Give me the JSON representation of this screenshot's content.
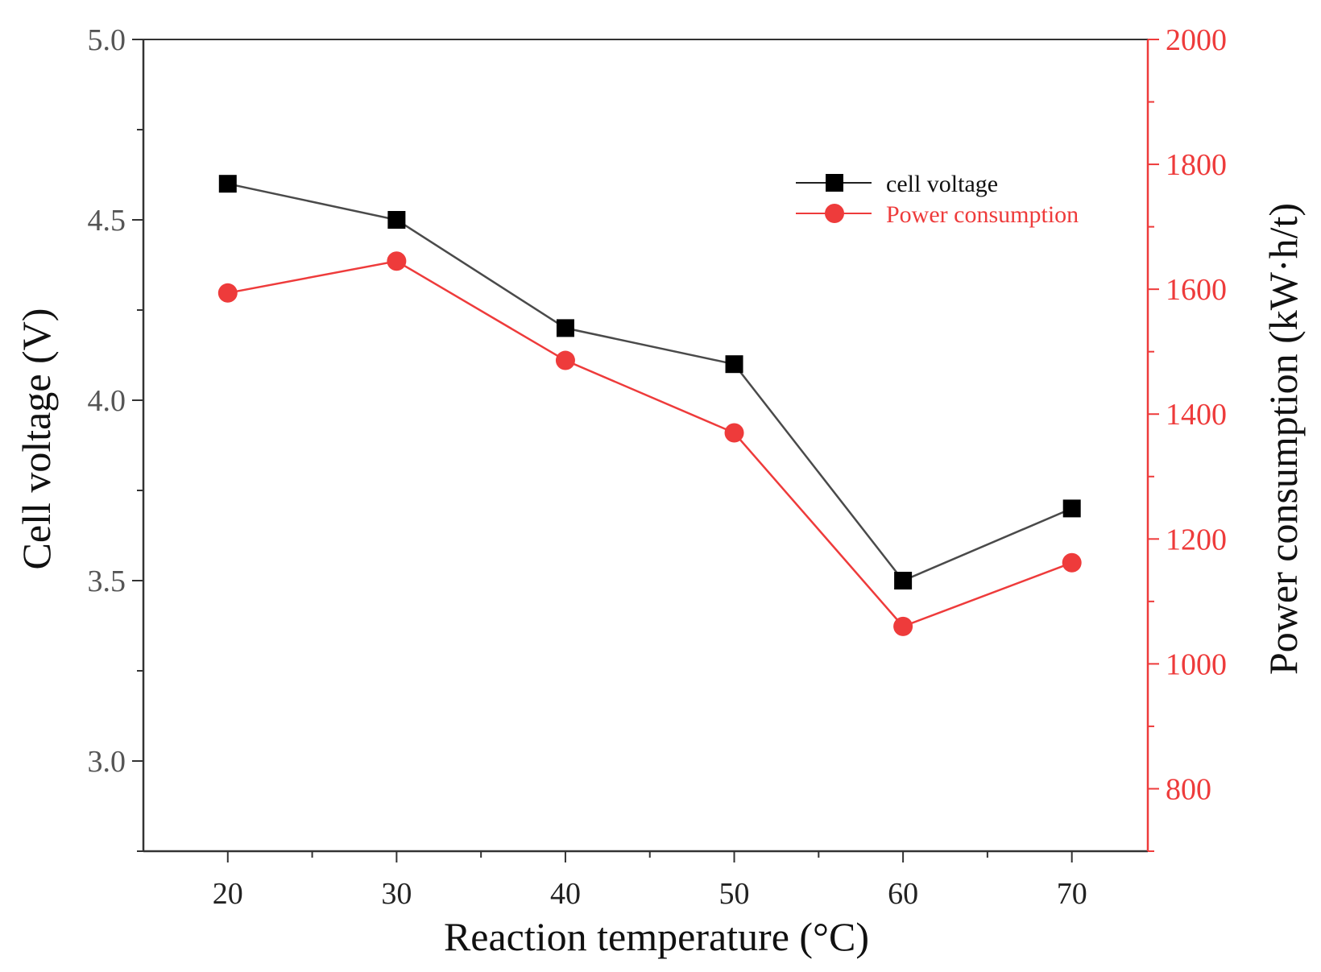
{
  "chart_data": {
    "type": "line",
    "xlabel": "Reaction temperature (°C)",
    "ylabel": "Cell voltage (V)",
    "y2label": "Power consumption (kW·h/t)",
    "x": [
      20,
      30,
      40,
      50,
      60,
      70
    ],
    "xlim": [
      15,
      74.5
    ],
    "ylim": [
      2.75,
      5.0
    ],
    "y2lim": [
      700,
      2000
    ],
    "x_ticks": [
      20,
      30,
      40,
      50,
      60,
      70
    ],
    "x_tick_labels": [
      "20",
      "30",
      "40",
      "50",
      "60",
      "70"
    ],
    "y_ticks": [
      3.0,
      3.5,
      4.0,
      4.5,
      5.0
    ],
    "y_tick_labels": [
      "3.0",
      "3.5",
      "4.0",
      "4.5",
      "5.0"
    ],
    "y2_ticks": [
      800,
      1000,
      1200,
      1400,
      1600,
      1800,
      2000
    ],
    "y2_tick_labels": [
      "800",
      "1000",
      "1200",
      "1400",
      "1600",
      "1800",
      "2000"
    ],
    "legend_position": "top-right",
    "grid": false,
    "series": [
      {
        "name": "cell voltage",
        "axis": "left",
        "marker": "square",
        "color": "#000000",
        "line_color": "#4a4a4a",
        "values": [
          4.6,
          4.5,
          4.2,
          4.1,
          3.5,
          3.7
        ]
      },
      {
        "name": "Power consumption",
        "axis": "right",
        "marker": "circle",
        "color": "#ee3b3b",
        "line_color": "#ee3b3b",
        "values": [
          1594,
          1645,
          1486,
          1370,
          1060,
          1162
        ]
      }
    ]
  },
  "colors": {
    "axis": "#333333",
    "right_axis": "#ee3b3b",
    "left_tick_text": "#555555"
  }
}
